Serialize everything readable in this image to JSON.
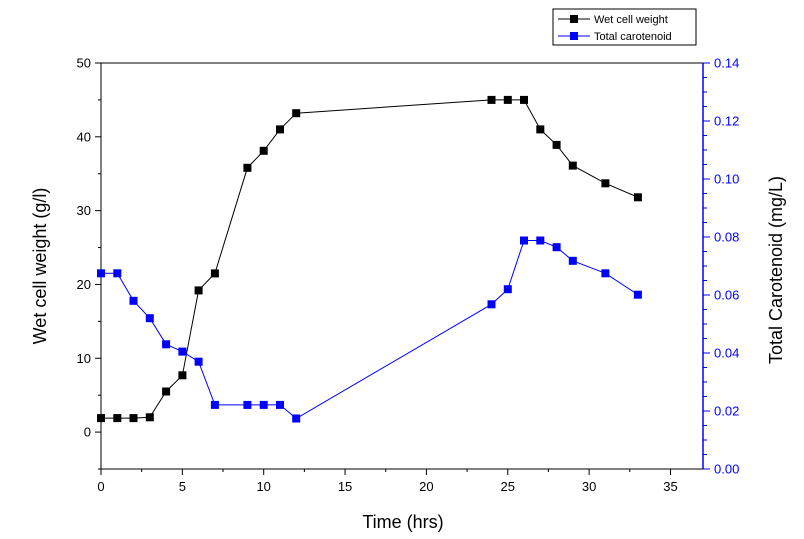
{
  "chart_data": {
    "type": "line",
    "title": "",
    "xlabel": "Time (hrs)",
    "ylabel": "Wet cell weight (g/l)",
    "y2label": "Total Carotenoid (mg/L)",
    "xlim": [
      0,
      37
    ],
    "ylim": [
      -5,
      50
    ],
    "y2lim": [
      0,
      0.14
    ],
    "x_ticks": [
      "0",
      "5",
      "10",
      "15",
      "20",
      "25",
      "30",
      "35"
    ],
    "y_ticks": [
      "0",
      "10",
      "20",
      "30",
      "40",
      "50"
    ],
    "y2_ticks": [
      "0.00",
      "0.02",
      "0.04",
      "0.06",
      "0.08",
      "0.10",
      "0.12",
      "0.14"
    ],
    "grid": false,
    "legend_position": "top-right (outside plot)",
    "series": [
      {
        "name": "Wet cell weight",
        "axis": "left",
        "color": "#000000",
        "marker": "square",
        "x": [
          0,
          1,
          2,
          3,
          4,
          5,
          6,
          7,
          9,
          10,
          11,
          12,
          24,
          25,
          26,
          27,
          28,
          29,
          31,
          33
        ],
        "y": [
          1.9,
          1.9,
          1.9,
          2.0,
          5.5,
          7.7,
          19.2,
          21.5,
          35.8,
          38.1,
          41.0,
          43.2,
          45.0,
          45.0,
          45.0,
          41.0,
          38.9,
          36.1,
          33.7,
          31.8
        ]
      },
      {
        "name": "Total carotenoid",
        "axis": "right",
        "color": "#0000ff",
        "marker": "square",
        "x": [
          0,
          1,
          2,
          3,
          4,
          5,
          6,
          7,
          9,
          10,
          11,
          12,
          24,
          25,
          26,
          27,
          28,
          29,
          31,
          33
        ],
        "y": [
          0.0675,
          0.0675,
          0.058,
          0.052,
          0.043,
          0.0405,
          0.037,
          0.0221,
          0.0221,
          0.0221,
          0.0221,
          0.0174,
          0.0568,
          0.062,
          0.0788,
          0.0788,
          0.0765,
          0.0718,
          0.0675,
          0.0601
        ]
      }
    ],
    "colors": {
      "left_axis": "#000000",
      "right_axis": "#0000ff"
    }
  }
}
